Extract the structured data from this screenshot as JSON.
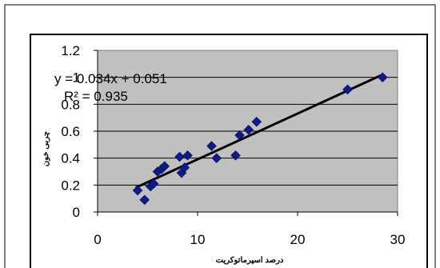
{
  "chart_data": {
    "type": "scatter",
    "title": "",
    "xlabel": "درصد اسپرماتوکریت",
    "ylabel": "چربی خون",
    "xlim": [
      0,
      30
    ],
    "ylim": [
      0,
      1.2
    ],
    "x_ticks": [
      0,
      10,
      20,
      30
    ],
    "y_ticks": [
      0,
      0.2,
      0.4,
      0.6,
      0.8,
      1,
      1.2
    ],
    "y_tick_labels": [
      "0",
      "0.2",
      "0.4",
      "0.6",
      "0.8",
      "1",
      "1.2"
    ],
    "grid": "horizontal",
    "plot_background": "#c0c0c0",
    "marker_color": "#0b1a8f",
    "marker": "diamond",
    "series": [
      {
        "x": [
          4.0,
          4.7,
          5.3,
          5.6,
          6.0,
          6.4,
          6.7,
          8.2,
          8.4,
          8.7,
          9.0,
          11.4,
          11.9,
          13.8,
          14.2,
          15.1,
          15.9,
          25.0,
          28.5
        ],
        "y": [
          0.16,
          0.09,
          0.19,
          0.21,
          0.3,
          0.32,
          0.34,
          0.41,
          0.29,
          0.33,
          0.42,
          0.49,
          0.4,
          0.42,
          0.57,
          0.61,
          0.67,
          0.91,
          1.0
        ]
      }
    ],
    "trendline": {
      "slope": 0.034,
      "intercept": 0.051,
      "x_range": [
        3.8,
        28.5
      ],
      "color": "#000000",
      "equation_label": "y = 0.034x + 0.051",
      "r2_label": "R² = 0.935"
    }
  }
}
